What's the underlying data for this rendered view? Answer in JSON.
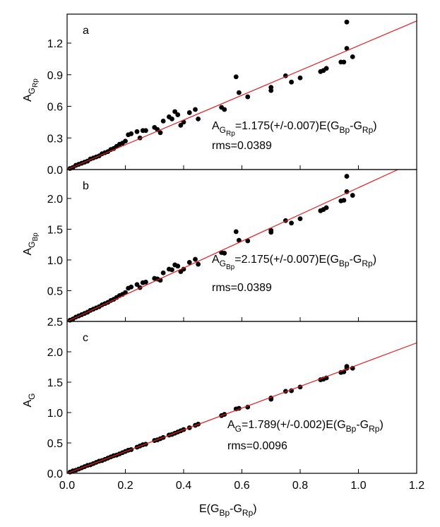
{
  "chart_data": [
    {
      "type": "scatter",
      "panel_label": "a",
      "ylabel": [
        "A",
        "G",
        "Rp"
      ],
      "annotation": [
        "A",
        "G",
        "Rp",
        "=1.175(+/-0.007)E(G",
        "Bp",
        "-G",
        "Rp",
        ")"
      ],
      "rms": "rms=0.0389",
      "color": "#000000",
      "fit": {
        "slope": 1.175,
        "color": "#e41a1c"
      },
      "xlim": [
        0,
        1.2
      ],
      "ylim": [
        0,
        1.475
      ],
      "yticks": [
        {
          "value": 0,
          "label": "0.0"
        },
        0.3,
        0.6,
        0.9,
        1.2
      ],
      "x": [
        0.01,
        0.02,
        0.03,
        0.04,
        0.05,
        0.06,
        0.07,
        0.08,
        0.09,
        0.1,
        0.11,
        0.12,
        0.13,
        0.14,
        0.15,
        0.16,
        0.17,
        0.18,
        0.19,
        0.2,
        0.21,
        0.22,
        0.24,
        0.25,
        0.26,
        0.27,
        0.3,
        0.31,
        0.32,
        0.33,
        0.35,
        0.36,
        0.37,
        0.38,
        0.39,
        0.4,
        0.42,
        0.44,
        0.45,
        0.53,
        0.54,
        0.58,
        0.59,
        0.62,
        0.7,
        0.7,
        0.75,
        0.77,
        0.8,
        0.87,
        0.88,
        0.89,
        0.94,
        0.95,
        0.96,
        0.96,
        0.98
      ],
      "values": [
        0.01,
        0.02,
        0.04,
        0.05,
        0.06,
        0.07,
        0.08,
        0.1,
        0.11,
        0.12,
        0.13,
        0.15,
        0.16,
        0.17,
        0.19,
        0.2,
        0.22,
        0.24,
        0.25,
        0.27,
        0.33,
        0.34,
        0.36,
        0.3,
        0.37,
        0.37,
        0.4,
        0.38,
        0.35,
        0.46,
        0.5,
        0.48,
        0.55,
        0.52,
        0.42,
        0.45,
        0.54,
        0.57,
        0.48,
        0.59,
        0.57,
        0.88,
        0.73,
        0.69,
        0.78,
        0.75,
        0.89,
        0.83,
        0.87,
        0.93,
        0.94,
        0.96,
        1.02,
        1.02,
        1.4,
        1.15,
        1.07
      ]
    },
    {
      "type": "scatter",
      "panel_label": "b",
      "ylabel": [
        "A",
        "G",
        "Bp"
      ],
      "annotation": [
        "A",
        "G",
        "Bp",
        "=2.175(+/-0.007)E(G",
        "Bp",
        "-G",
        "Rp",
        ")"
      ],
      "rms": "rms=0.0389",
      "color": "#000000",
      "fit": {
        "slope": 2.175,
        "color": "#e41a1c"
      },
      "xlim": [
        0,
        1.2
      ],
      "ylim": [
        0,
        2.47
      ],
      "yticks": [
        0.5,
        {
          "value": 1,
          "label": "1.0"
        },
        1.5,
        {
          "value": 2,
          "label": "2.0"
        }
      ],
      "x": [
        0.01,
        0.02,
        0.03,
        0.04,
        0.05,
        0.06,
        0.07,
        0.08,
        0.09,
        0.1,
        0.11,
        0.12,
        0.13,
        0.14,
        0.15,
        0.16,
        0.17,
        0.18,
        0.19,
        0.2,
        0.21,
        0.22,
        0.24,
        0.25,
        0.26,
        0.27,
        0.3,
        0.31,
        0.32,
        0.33,
        0.35,
        0.36,
        0.37,
        0.38,
        0.39,
        0.4,
        0.42,
        0.44,
        0.45,
        0.53,
        0.54,
        0.58,
        0.59,
        0.62,
        0.7,
        0.7,
        0.75,
        0.77,
        0.8,
        0.87,
        0.88,
        0.89,
        0.94,
        0.95,
        0.96,
        0.96,
        0.98
      ],
      "values": [
        0.02,
        0.04,
        0.07,
        0.09,
        0.11,
        0.13,
        0.15,
        0.18,
        0.2,
        0.22,
        0.24,
        0.27,
        0.29,
        0.31,
        0.34,
        0.36,
        0.39,
        0.42,
        0.44,
        0.47,
        0.54,
        0.56,
        0.6,
        0.55,
        0.63,
        0.64,
        0.7,
        0.69,
        0.67,
        0.79,
        0.85,
        0.84,
        0.92,
        0.9,
        0.81,
        0.85,
        0.96,
        1.01,
        0.93,
        1.12,
        1.11,
        1.46,
        1.32,
        1.31,
        1.48,
        1.45,
        1.64,
        1.6,
        1.67,
        1.8,
        1.82,
        1.85,
        1.96,
        1.97,
        2.36,
        2.11,
        2.05
      ]
    },
    {
      "type": "scatter",
      "panel_label": "c",
      "ylabel": [
        "A",
        "G"
      ],
      "annotation": [
        "A",
        "G",
        "=1.789(+/-0.002)E(G",
        "Bp",
        "-G",
        "Rp",
        ")"
      ],
      "rms": "rms=0.0096",
      "color": "#000000",
      "fit": {
        "slope": 1.789,
        "color": "#e41a1c"
      },
      "xlabel": [
        "E(G",
        "Bp",
        "-G",
        "Rp",
        ")"
      ],
      "xlim": [
        0,
        1.2
      ],
      "ylim": [
        0,
        2.5
      ],
      "xticks": [
        {
          "value": 0,
          "label": "0.0"
        },
        0.2,
        0.4,
        0.6,
        0.8,
        {
          "value": 1,
          "label": "1.0"
        },
        1.2
      ],
      "yticks": [
        {
          "value": 0,
          "label": "0.0"
        },
        0.5,
        {
          "value": 1,
          "label": "1.0"
        },
        1.5,
        {
          "value": 2,
          "label": "2.0"
        },
        2.5
      ],
      "x": [
        0.01,
        0.02,
        0.03,
        0.04,
        0.05,
        0.06,
        0.07,
        0.08,
        0.09,
        0.1,
        0.11,
        0.12,
        0.13,
        0.14,
        0.15,
        0.16,
        0.17,
        0.18,
        0.19,
        0.2,
        0.21,
        0.22,
        0.24,
        0.25,
        0.26,
        0.27,
        0.3,
        0.31,
        0.32,
        0.33,
        0.35,
        0.36,
        0.37,
        0.38,
        0.39,
        0.4,
        0.42,
        0.44,
        0.45,
        0.53,
        0.54,
        0.58,
        0.59,
        0.62,
        0.7,
        0.7,
        0.75,
        0.77,
        0.8,
        0.87,
        0.88,
        0.89,
        0.94,
        0.95,
        0.96,
        0.96,
        0.98
      ],
      "values": [
        0.02,
        0.04,
        0.05,
        0.07,
        0.09,
        0.11,
        0.13,
        0.14,
        0.16,
        0.18,
        0.2,
        0.21,
        0.23,
        0.25,
        0.27,
        0.29,
        0.3,
        0.32,
        0.34,
        0.36,
        0.38,
        0.39,
        0.43,
        0.45,
        0.47,
        0.48,
        0.54,
        0.55,
        0.57,
        0.59,
        0.63,
        0.64,
        0.66,
        0.68,
        0.7,
        0.72,
        0.75,
        0.79,
        0.81,
        0.95,
        0.97,
        1.06,
        1.07,
        1.09,
        1.24,
        1.22,
        1.35,
        1.36,
        1.42,
        1.54,
        1.55,
        1.57,
        1.66,
        1.67,
        1.76,
        1.73,
        1.73
      ]
    }
  ]
}
